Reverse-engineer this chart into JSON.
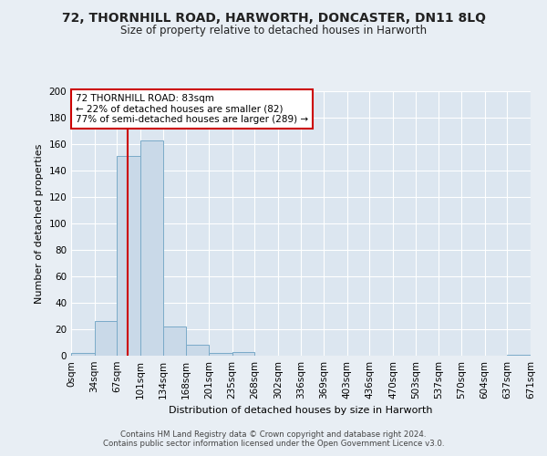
{
  "title": "72, THORNHILL ROAD, HARWORTH, DONCASTER, DN11 8LQ",
  "subtitle": "Size of property relative to detached houses in Harworth",
  "xlabel": "Distribution of detached houses by size in Harworth",
  "ylabel": "Number of detached properties",
  "footnote1": "Contains HM Land Registry data © Crown copyright and database right 2024.",
  "footnote2": "Contains public sector information licensed under the Open Government Licence v3.0.",
  "bar_edges": [
    0,
    34,
    67,
    101,
    134,
    168,
    201,
    235,
    268,
    302,
    336,
    369,
    403,
    436,
    470,
    503,
    537,
    570,
    604,
    637,
    671
  ],
  "bar_heights": [
    2,
    26,
    151,
    163,
    22,
    8,
    2,
    3,
    0,
    0,
    0,
    0,
    0,
    0,
    0,
    0,
    0,
    0,
    0,
    1
  ],
  "bar_color": "#c9d9e8",
  "bar_edge_color": "#7aaac8",
  "property_size": 83,
  "property_label": "72 THORNHILL ROAD: 83sqm",
  "annotation_line1": "← 22% of detached houses are smaller (82)",
  "annotation_line2": "77% of semi-detached houses are larger (289) →",
  "vline_color": "#cc0000",
  "annotation_box_color": "#cc0000",
  "ylim": [
    0,
    200
  ],
  "yticks": [
    0,
    20,
    40,
    60,
    80,
    100,
    120,
    140,
    160,
    180,
    200
  ],
  "bg_color": "#e8eef4",
  "plot_bg_color": "#dce6f0",
  "grid_color": "#ffffff",
  "tick_label_fontsize": 7.5,
  "title_fontsize": 10,
  "subtitle_fontsize": 8.5
}
